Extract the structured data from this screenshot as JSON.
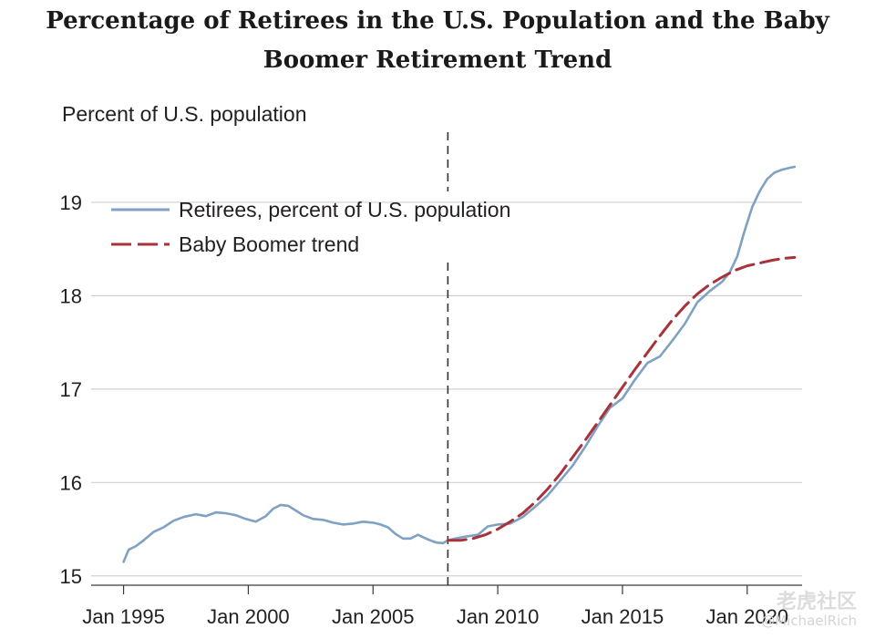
{
  "chart_data": {
    "type": "line",
    "title": "Percentage of Retirees in the U.S. Population and the Baby Boomer Retirement Trend",
    "title_lines": [
      "Percentage of Retirees in the U.S. Population and the Baby",
      "Boomer Retirement Trend"
    ],
    "ylabel": "Percent of U.S. population",
    "xlabel": "",
    "ylim": [
      14.9,
      19.8
    ],
    "xlim": [
      1993.7,
      2022.2
    ],
    "grid": true,
    "legend_placement": "top-left",
    "y_ticks": [
      "15",
      "16",
      "17",
      "18",
      "19"
    ],
    "x_ticks": [
      {
        "x": 1995,
        "label": "Jan 1995"
      },
      {
        "x": 2000,
        "label": "Jan 2000"
      },
      {
        "x": 2005,
        "label": "Jan 2005"
      },
      {
        "x": 2010,
        "label": "Jan 2010"
      },
      {
        "x": 2015,
        "label": "Jan 2015"
      },
      {
        "x": 2020,
        "label": "Jan 2020"
      }
    ],
    "vline_x": 2008.0,
    "series": [
      {
        "name": "Retirees, percent of U.S. population",
        "style": "solid",
        "color": "#7ea1c4",
        "x": [
          1995.0,
          1995.2,
          1995.5,
          1995.8,
          1996.2,
          1996.6,
          1997.0,
          1997.4,
          1997.9,
          1998.3,
          1998.7,
          1999.1,
          1999.5,
          1999.9,
          2000.3,
          2000.7,
          2001.0,
          2001.3,
          2001.6,
          2001.9,
          2002.2,
          2002.6,
          2003.0,
          2003.4,
          2003.8,
          2004.2,
          2004.6,
          2005.0,
          2005.3,
          2005.6,
          2005.9,
          2006.2,
          2006.5,
          2006.8,
          2007.2,
          2007.5,
          2007.8,
          2008.0,
          2008.3,
          2008.7,
          2009.2,
          2009.6,
          2010.0,
          2010.5,
          2011.0,
          2011.5,
          2012.0,
          2012.5,
          2013.0,
          2013.5,
          2014.0,
          2014.5,
          2015.0,
          2015.5,
          2016.0,
          2016.5,
          2017.0,
          2017.5,
          2018.0,
          2018.5,
          2019.0,
          2019.3,
          2019.6,
          2019.9,
          2020.2,
          2020.5,
          2020.8,
          2021.1,
          2021.4,
          2021.7,
          2021.9
        ],
        "values": [
          15.15,
          15.28,
          15.32,
          15.38,
          15.47,
          15.52,
          15.59,
          15.63,
          15.66,
          15.64,
          15.68,
          15.67,
          15.65,
          15.61,
          15.58,
          15.64,
          15.72,
          15.76,
          15.75,
          15.7,
          15.65,
          15.61,
          15.6,
          15.57,
          15.55,
          15.56,
          15.58,
          15.57,
          15.55,
          15.52,
          15.45,
          15.4,
          15.4,
          15.44,
          15.39,
          15.36,
          15.35,
          15.38,
          15.4,
          15.42,
          15.44,
          15.53,
          15.55,
          15.56,
          15.63,
          15.74,
          15.86,
          16.02,
          16.18,
          16.38,
          16.6,
          16.8,
          16.9,
          17.1,
          17.28,
          17.35,
          17.52,
          17.7,
          17.93,
          18.05,
          18.15,
          18.25,
          18.42,
          18.7,
          18.95,
          19.12,
          19.25,
          19.32,
          19.35,
          19.37,
          19.38
        ]
      },
      {
        "name": "Baby Boomer trend",
        "style": "dashed",
        "color": "#a8323a",
        "x": [
          2008.0,
          2008.5,
          2009.0,
          2009.5,
          2010.0,
          2010.5,
          2011.0,
          2011.5,
          2012.0,
          2012.5,
          2013.0,
          2013.5,
          2014.0,
          2014.5,
          2015.0,
          2015.5,
          2016.0,
          2016.5,
          2017.0,
          2017.5,
          2018.0,
          2018.5,
          2019.0,
          2019.5,
          2020.0,
          2020.5,
          2021.0,
          2021.5,
          2021.9
        ],
        "values": [
          15.38,
          15.38,
          15.4,
          15.44,
          15.5,
          15.58,
          15.67,
          15.79,
          15.93,
          16.09,
          16.27,
          16.45,
          16.64,
          16.83,
          17.02,
          17.21,
          17.39,
          17.57,
          17.74,
          17.89,
          18.02,
          18.12,
          18.2,
          18.27,
          18.32,
          18.35,
          18.38,
          18.4,
          18.41
        ]
      }
    ]
  },
  "watermark": {
    "brand": "老虎社区",
    "handle": "@MichaelRich"
  }
}
